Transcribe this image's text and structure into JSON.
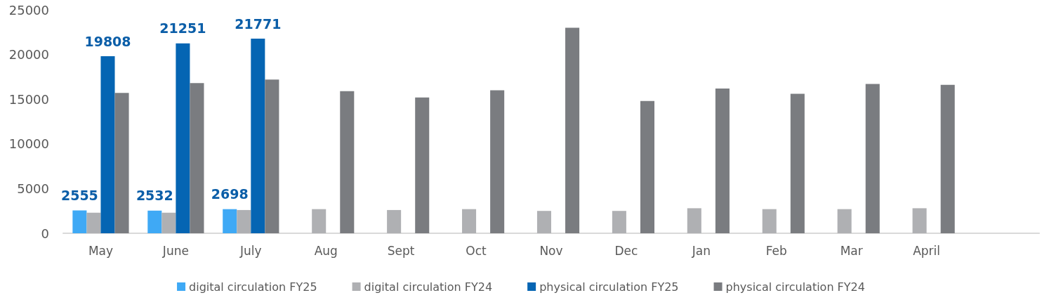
{
  "chart_data": {
    "type": "bar",
    "categories": [
      "May",
      "June",
      "July",
      "Aug",
      "Sept",
      "Oct",
      "Nov",
      "Dec",
      "Jan",
      "Feb",
      "Mar",
      "April",
      null
    ],
    "ylim": [
      0,
      25000
    ],
    "yticks": [
      0,
      5000,
      10000,
      15000,
      20000,
      25000
    ],
    "grid": false,
    "legend": "bottom",
    "series": [
      {
        "name": "digital circulation FY25",
        "color": "#3fa9f5",
        "values": [
          2555,
          2532,
          2698,
          null,
          null,
          null,
          null,
          null,
          null,
          null,
          null,
          null,
          null
        ],
        "value_labels": [
          "2555",
          "2532",
          "2698",
          null,
          null,
          null,
          null,
          null,
          null,
          null,
          null,
          null,
          null
        ]
      },
      {
        "name": "digital circulation FY24",
        "color": "#afb0b3",
        "values": [
          2300,
          2300,
          2600,
          2700,
          2600,
          2700,
          2500,
          2500,
          2800,
          2700,
          2700,
          2800,
          null
        ]
      },
      {
        "name": "physical circulation FY25",
        "color": "#0565b3",
        "values": [
          19808,
          21251,
          21771,
          null,
          null,
          null,
          null,
          null,
          null,
          null,
          null,
          null,
          null
        ],
        "value_labels": [
          "19808",
          "21251",
          "21771",
          null,
          null,
          null,
          null,
          null,
          null,
          null,
          null,
          null,
          null
        ]
      },
      {
        "name": "physical circulation FY24",
        "color": "#7a7c80",
        "values": [
          15700,
          16800,
          17200,
          15900,
          15200,
          16000,
          23000,
          14800,
          16200,
          15600,
          16700,
          16600,
          null
        ]
      }
    ]
  }
}
